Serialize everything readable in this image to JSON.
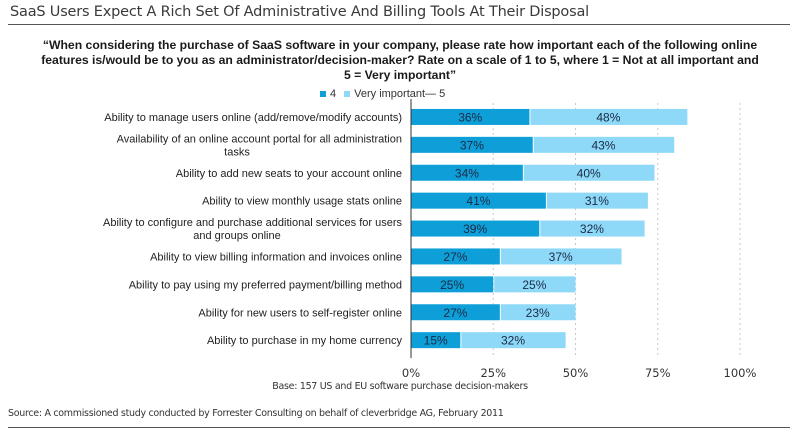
{
  "header": {
    "title": "SaaS Users Expect A Rich Set Of Administrative And Billing Tools At Their Disposal",
    "question": "“When considering the purchase of SaaS software in your company, please rate how important each of the following online features is/would be to you as an administrator/decision-maker?  Rate on a scale of 1 to 5, where 1 = Not at all important and 5 = Very important”"
  },
  "footer": {
    "base": "Base: 157 US and EU software purchase decision-makers",
    "source": "Source: A commissioned study conducted by Forrester Consulting on behalf of cleverbridge AG, February 2011"
  },
  "colors": {
    "series_4": "#0f9fd8",
    "series_5": "#8ed8f8",
    "axis": "#333333",
    "grid": "#c8c8c8",
    "label_text": "#1a2a44"
  },
  "chart_data": {
    "type": "bar",
    "orientation": "horizontal",
    "stacked": true,
    "title": "SaaS Users Expect A Rich Set Of Administrative And Billing Tools At Their Disposal",
    "xlabel": "",
    "ylabel": "",
    "xlim": [
      0,
      100
    ],
    "x_ticks": [
      "0%",
      "25%",
      "50%",
      "75%",
      "100%"
    ],
    "x_tick_values": [
      0,
      25,
      50,
      75,
      100
    ],
    "grid": "vertical dashed",
    "legend": "top-center",
    "categories": [
      [
        "Ability to manage users online (add/remove/modify accounts)"
      ],
      [
        "Availability of an online account portal for all administration",
        "tasks"
      ],
      [
        "Ability to add new seats to your account online"
      ],
      [
        "Ability to view monthly usage stats online"
      ],
      [
        "Ability to configure and purchase additional services for users",
        "and groups online"
      ],
      [
        "Ability to view billing information and invoices online"
      ],
      [
        "Ability to pay using my preferred payment/billing method"
      ],
      [
        "Ability for new users to self-register online"
      ],
      [
        "Ability to purchase in my home currency"
      ]
    ],
    "series": [
      {
        "name": "4",
        "values": [
          36,
          37,
          34,
          41,
          39,
          27,
          25,
          27,
          15
        ]
      },
      {
        "name": "Very important— 5",
        "values": [
          48,
          43,
          40,
          31,
          32,
          37,
          25,
          23,
          32
        ]
      }
    ]
  }
}
